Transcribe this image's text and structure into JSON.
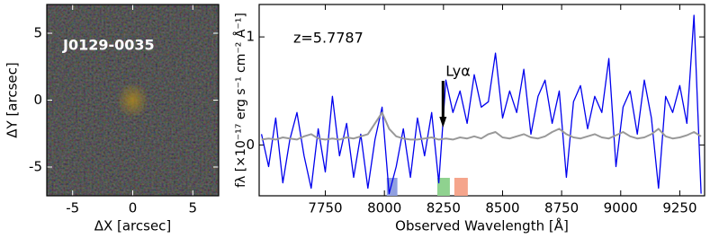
{
  "chart_data": [
    {
      "type": "image",
      "title": "J0129-0035",
      "xlabel": "ΔX [arcsec]",
      "ylabel": "ΔY [arcsec]",
      "xlim": [
        -7.15,
        7.15
      ],
      "ylim": [
        -7.15,
        7.15
      ],
      "xticks": [
        -5,
        0,
        5
      ],
      "yticks": [
        -5,
        0,
        5
      ]
    },
    {
      "type": "line",
      "xlabel": "Observed Wavelength [Å]",
      "ylabel": "fλ [×10⁻¹⁷ erg s⁻¹ cm⁻² Å⁻¹]",
      "annotations": [
        {
          "text": "z=5.7787"
        },
        {
          "text": "Lyα",
          "x": 8248
        }
      ],
      "xlim": [
        7470,
        9355
      ],
      "ylim": [
        -0.47,
        1.3
      ],
      "xticks": [
        7750,
        8000,
        8250,
        8500,
        8750,
        9000,
        9250
      ],
      "yticks": [
        0,
        1
      ],
      "x": [
        7480,
        7510,
        7540,
        7570,
        7600,
        7630,
        7660,
        7690,
        7720,
        7750,
        7780,
        7810,
        7840,
        7870,
        7900,
        7930,
        7960,
        7990,
        8020,
        8050,
        8080,
        8110,
        8140,
        8170,
        8200,
        8230,
        8260,
        8290,
        8320,
        8350,
        8380,
        8410,
        8440,
        8470,
        8500,
        8530,
        8560,
        8590,
        8620,
        8650,
        8680,
        8710,
        8740,
        8770,
        8800,
        8830,
        8860,
        8890,
        8920,
        8950,
        8980,
        9010,
        9040,
        9070,
        9100,
        9130,
        9160,
        9190,
        9220,
        9250,
        9280,
        9310,
        9340
      ],
      "series": [
        {
          "color": "#0000ee",
          "values": [
            0.1,
            -0.2,
            0.25,
            -0.35,
            0.05,
            0.3,
            -0.1,
            -0.4,
            0.15,
            -0.25,
            0.45,
            -0.1,
            0.2,
            -0.3,
            0.1,
            -0.4,
            0.05,
            0.35,
            -0.45,
            -0.2,
            0.15,
            -0.3,
            0.25,
            -0.1,
            0.3,
            -0.35,
            0.6,
            0.3,
            0.5,
            0.2,
            0.65,
            0.35,
            0.4,
            0.85,
            0.25,
            0.5,
            0.3,
            0.7,
            0.1,
            0.45,
            0.6,
            0.2,
            0.5,
            -0.3,
            0.4,
            0.55,
            0.15,
            0.45,
            0.3,
            0.8,
            -0.2,
            0.35,
            0.5,
            0.1,
            0.6,
            0.25,
            -0.4,
            0.45,
            0.3,
            0.55,
            0.2,
            1.2,
            -0.45
          ]
        },
        {
          "color": "#999999",
          "values": [
            0.05,
            0.06,
            0.05,
            0.07,
            0.06,
            0.05,
            0.08,
            0.1,
            0.06,
            0.05,
            0.06,
            0.05,
            0.07,
            0.06,
            0.08,
            0.1,
            0.2,
            0.3,
            0.15,
            0.08,
            0.06,
            0.05,
            0.05,
            0.06,
            0.07,
            0.05,
            0.06,
            0.05,
            0.07,
            0.06,
            0.08,
            0.06,
            0.1,
            0.12,
            0.07,
            0.06,
            0.08,
            0.1,
            0.07,
            0.06,
            0.08,
            0.12,
            0.15,
            0.1,
            0.07,
            0.06,
            0.08,
            0.1,
            0.07,
            0.06,
            0.09,
            0.12,
            0.08,
            0.06,
            0.07,
            0.1,
            0.15,
            0.08,
            0.06,
            0.07,
            0.09,
            0.12,
            0.08
          ]
        }
      ],
      "spans": [
        {
          "range": [
            8010,
            8055
          ],
          "color": "#8f9fe0"
        },
        {
          "range": [
            8224,
            8277
          ],
          "color": "#8fd28f"
        },
        {
          "range": [
            8296,
            8353
          ],
          "color": "#f5a58c"
        }
      ]
    }
  ]
}
